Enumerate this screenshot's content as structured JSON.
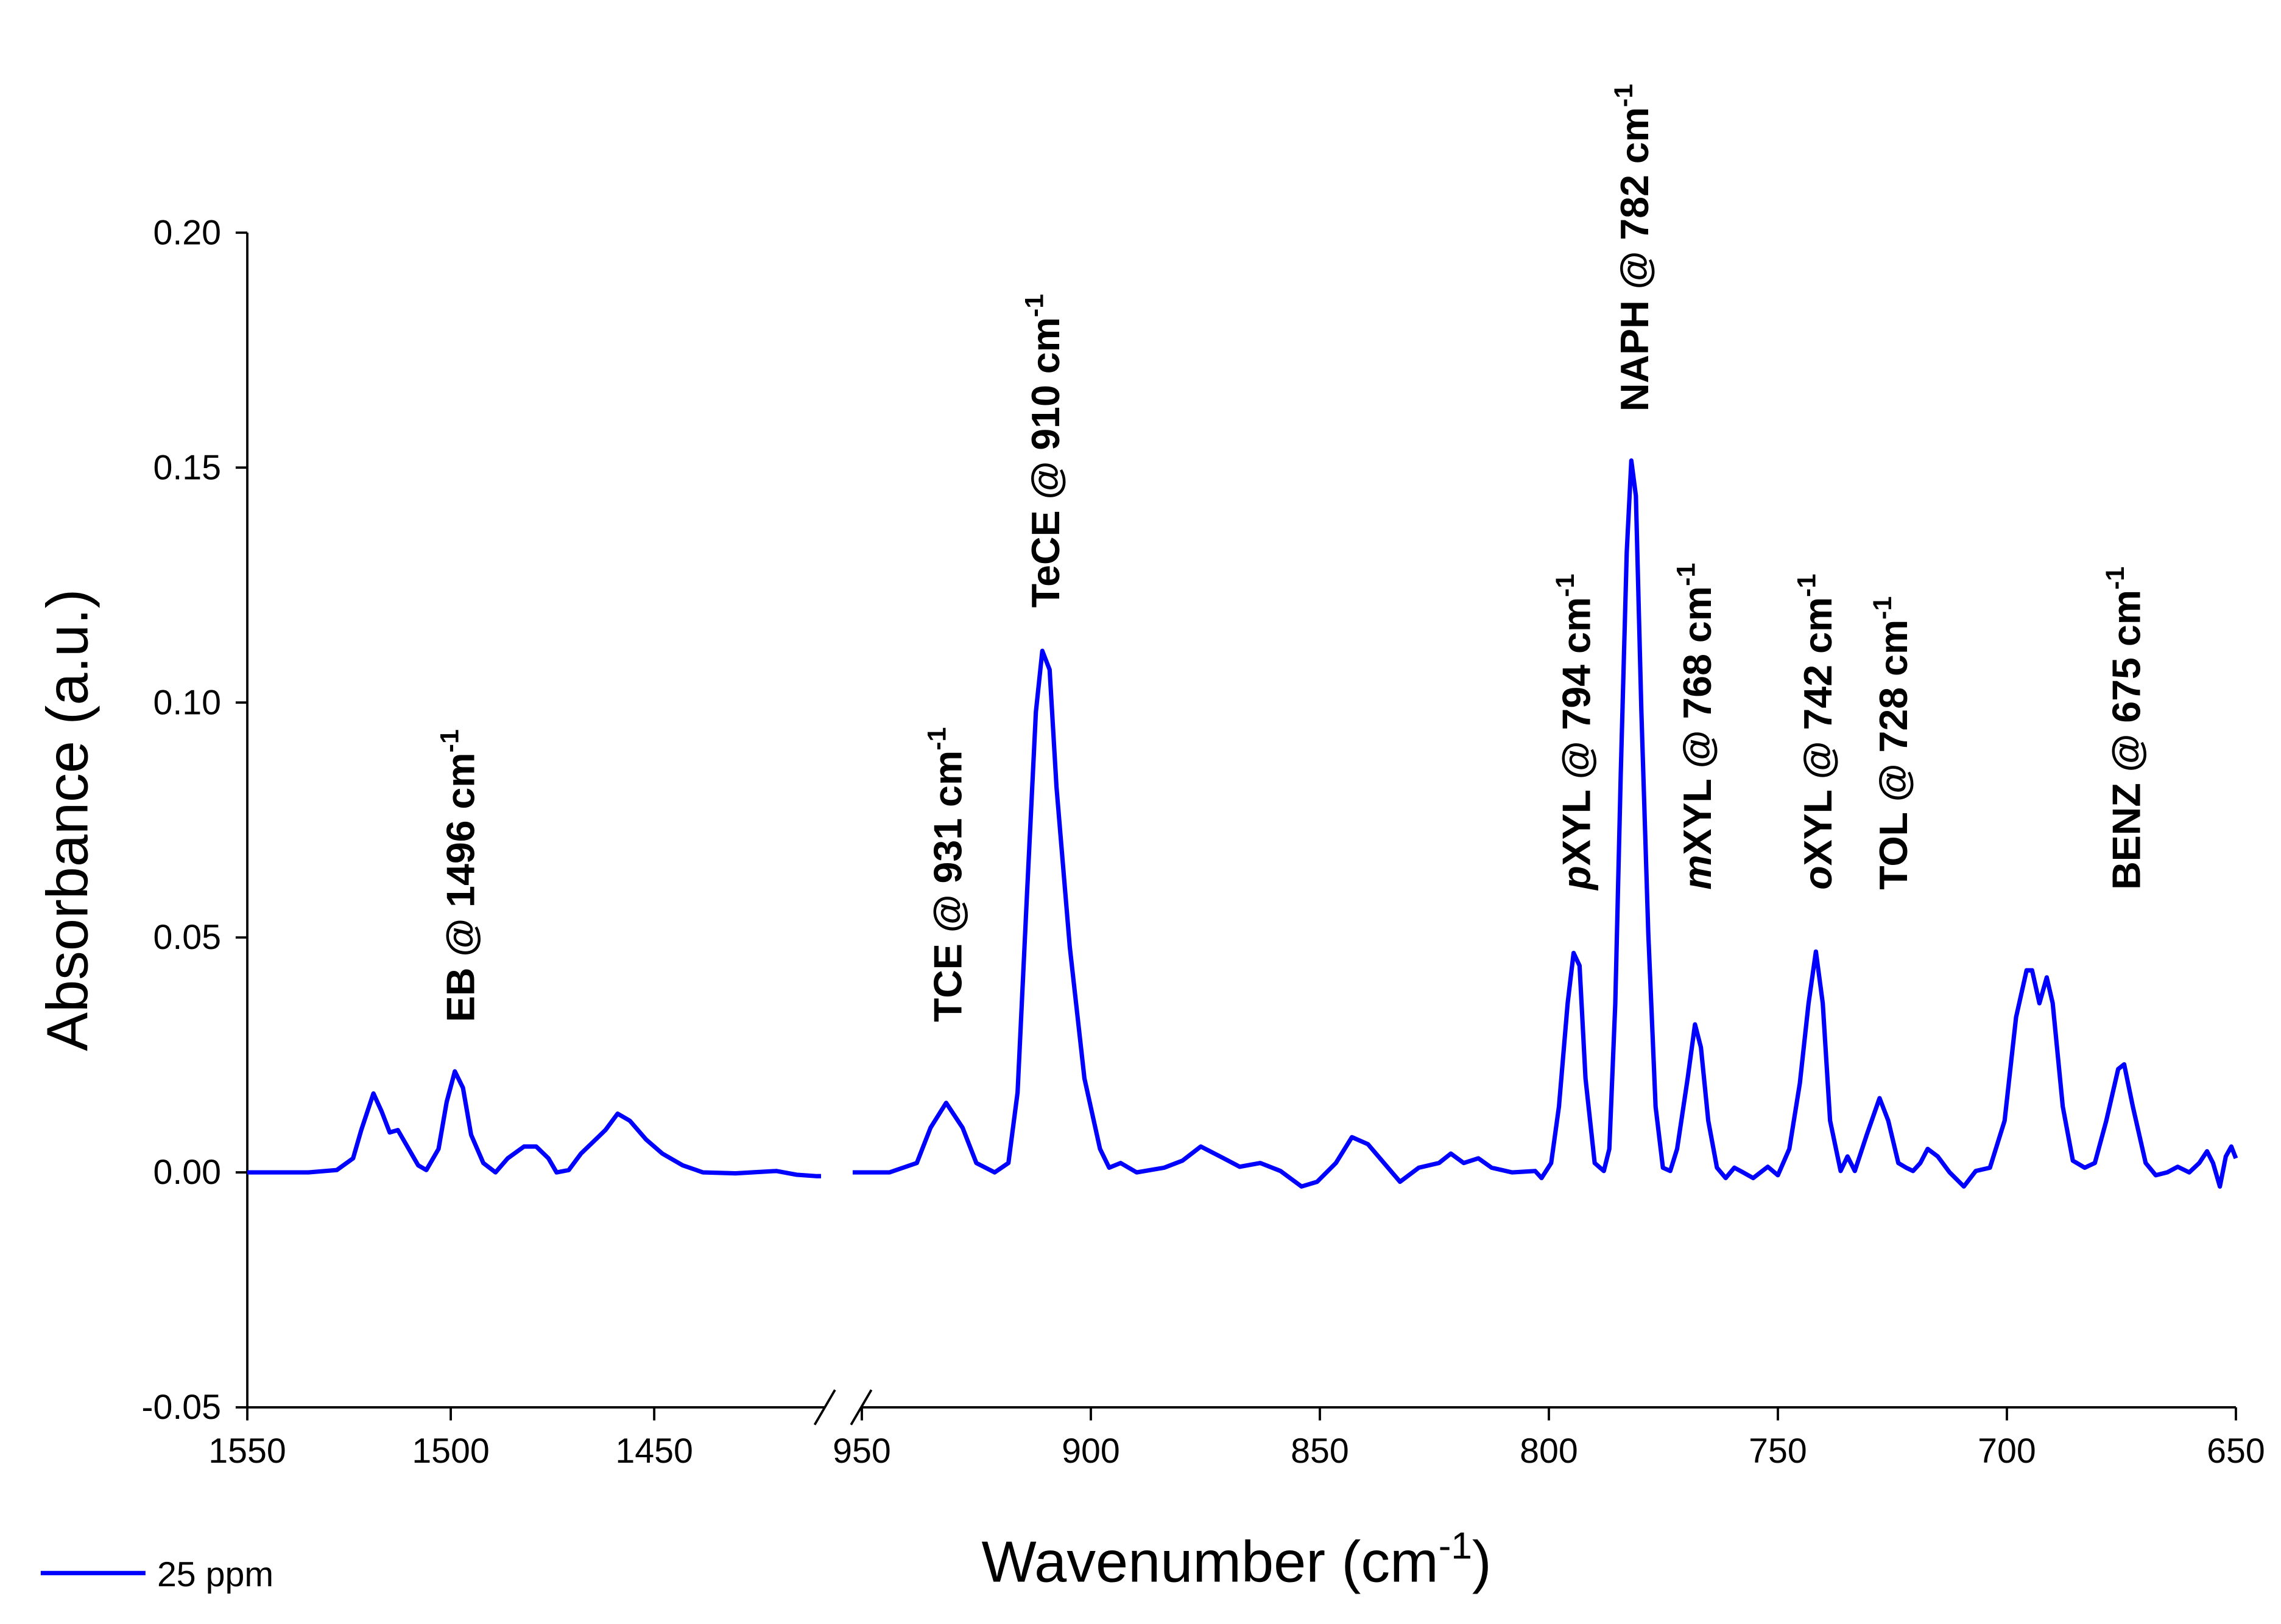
{
  "chart_data": {
    "type": "line",
    "xlabel": "Wavenumber (cm",
    "xlabel_sup": "-1",
    "xlabel_end": ")",
    "ylabel": "Absorbance (a.u.)",
    "ylim": [
      -0.05,
      0.2
    ],
    "yticks": [
      -0.05,
      {
        "value": 0,
        "label": "0.00"
      },
      0.05,
      {
        "value": 0.1,
        "label": "0.10"
      },
      0.15,
      {
        "value": 0.2,
        "label": "0.20"
      }
    ],
    "x_panels": [
      {
        "xlim": [
          1550,
          1407
        ],
        "xticks": [
          1550,
          1500,
          1450
        ]
      },
      {
        "xlim": [
          953,
          650
        ],
        "xticks": [
          950,
          900,
          850,
          800,
          750,
          700,
          650
        ]
      }
    ],
    "legend": "lower left",
    "series": [
      {
        "name": "25 ppm",
        "color": "#0000ff",
        "x": [
          1550,
          1535,
          1528,
          1524,
          1522,
          1519,
          1517,
          1515,
          1513,
          1511,
          1508,
          1506,
          1503,
          1501,
          1499,
          1497,
          1495,
          1492,
          1489,
          1486,
          1482,
          1479,
          1476,
          1474,
          1471,
          1468,
          1465,
          1462,
          1459,
          1456,
          1452,
          1448,
          1443,
          1438,
          1430,
          1420,
          1415,
          1410,
          1409,
          null,
          952,
          944,
          938,
          935,
          931.6,
          928,
          925,
          921,
          918,
          916,
          914,
          912,
          910.6,
          909,
          907.5,
          904.6,
          901.4,
          898,
          896,
          893.5,
          890,
          884,
          880,
          876,
          871,
          867.5,
          863,
          858.6,
          854,
          850.6,
          846.5,
          843,
          839.5,
          836,
          832.5,
          828.4,
          824,
          821.4,
          818.6,
          815.4,
          812.5,
          808,
          803,
          801.6,
          799.5,
          797.8,
          795.9,
          794.6,
          793.3,
          792,
          790,
          788,
          786.8,
          785.5,
          784.3,
          783,
          782,
          781,
          779.8,
          778.3,
          776.7,
          775.1,
          773.5,
          772,
          769.7,
          768.1,
          766.8,
          765.2,
          763.3,
          761.4,
          759.5,
          757.6,
          755.4,
          752.2,
          750,
          747.5,
          745.2,
          743.3,
          741.7,
          740.2,
          738.6,
          736.3,
          734.8,
          733.2,
          730.6,
          727.8,
          725.9,
          723.7,
          722,
          720.5,
          718.9,
          717.3,
          715.1,
          712.5,
          709.4,
          706.8,
          703.7,
          700.5,
          698,
          695.7,
          694.5,
          692.9,
          691.3,
          690,
          687.8,
          685.6,
          683,
          680.8,
          678.3,
          675.7,
          674.4,
          672.5,
          669.7,
          667.5,
          665,
          662.7,
          660.2,
          658,
          656.3,
          655,
          653.5,
          652.2,
          651,
          650
        ],
        "values": [
          0,
          0,
          0.0005,
          0.003,
          0.009,
          0.0168,
          0.013,
          0.0085,
          0.009,
          0.006,
          0.0015,
          0.0005,
          0.005,
          0.015,
          0.0215,
          0.018,
          0.008,
          0.002,
          0,
          0.003,
          0.0055,
          0.0055,
          0.003,
          0,
          0.0005,
          0.004,
          0.0065,
          0.009,
          0.0125,
          0.011,
          0.007,
          0.004,
          0.0015,
          0,
          -0.0002,
          0.0003,
          -0.0005,
          -0.0008,
          -0.0008,
          null,
          0,
          0,
          0.002,
          0.0095,
          0.0148,
          0.0095,
          0.002,
          0,
          0.002,
          0.017,
          0.058,
          0.098,
          0.111,
          0.107,
          0.082,
          0.048,
          0.02,
          0.005,
          0.001,
          0.002,
          0,
          0.001,
          0.0025,
          0.0055,
          0.003,
          0.0012,
          0.002,
          0.0003,
          -0.003,
          -0.002,
          0.002,
          0.0075,
          0.006,
          0.002,
          -0.002,
          0.001,
          0.002,
          0.004,
          0.002,
          0.003,
          0.001,
          0,
          0.0003,
          -0.0012,
          0.002,
          0.014,
          0.036,
          0.0467,
          0.044,
          0.02,
          0.002,
          0.0003,
          0.005,
          0.036,
          0.085,
          0.132,
          0.1515,
          0.144,
          0.098,
          0.051,
          0.014,
          0.001,
          0.0003,
          0.005,
          0.02,
          0.0315,
          0.0266,
          0.011,
          0.001,
          -0.0012,
          0.001,
          0,
          -0.0012,
          0.0012,
          -0.0006,
          0.005,
          0.019,
          0.036,
          0.047,
          0.036,
          0.011,
          0.0003,
          0.0034,
          0.0003,
          0.008,
          0.0158,
          0.011,
          0.002,
          0.001,
          0.0003,
          0.002,
          0.005,
          0.0034,
          0,
          -0.003,
          0.0003,
          0.001,
          0.011,
          0.033,
          0.043,
          0.043,
          0.036,
          0.0415,
          0.036,
          0.014,
          0.0025,
          0.001,
          0.002,
          0.011,
          0.022,
          0.023,
          0.014,
          0.002,
          -0.0006,
          0,
          0.0012,
          0,
          0.002,
          0.0045,
          0.002,
          -0.003,
          0.0034,
          0.0055,
          0.003
        ]
      }
    ],
    "annotations": [
      {
        "text": "EB @ 1496 cm",
        "sup": "-1"
      },
      {
        "text": "TCE @ 931 cm",
        "sup": "-1"
      },
      {
        "text": "TeCE @ 910 cm",
        "sup": "-1"
      },
      {
        "italic": "p",
        "text": "XYL @ 794 cm",
        "sup": "-1"
      },
      {
        "text": "NAPH @ 782 cm",
        "sup": "-1"
      },
      {
        "italic": "m",
        "text": "XYL @ 768 cm",
        "sup": "-1"
      },
      {
        "italic": "o",
        "text": "XYL @ 742 cm",
        "sup": "-1"
      },
      {
        "text": "TOL @ 728 cm",
        "sup": "-1"
      },
      {
        "text": "BENZ @ 675 cm",
        "sup": "-1"
      }
    ]
  }
}
